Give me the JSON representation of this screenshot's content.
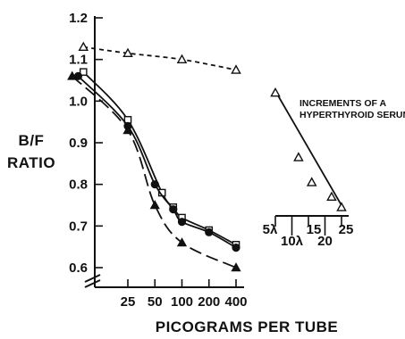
{
  "chart_data": {
    "type": "line",
    "xlabel": "PICOGRAMS PER TUBE",
    "ylabel_line1": "B/F",
    "ylabel_line2": "RATIO",
    "ylim": [
      0.6,
      1.2
    ],
    "y_ticks": [
      "0.6",
      "0.7",
      "0.8",
      "0.9",
      "1.0",
      "1.1",
      "1.2"
    ],
    "x_ticks": [
      "25",
      "50",
      "100",
      "200",
      "400"
    ],
    "x_scale": "log",
    "series": [
      {
        "marker": "open-triangle",
        "line_style": "dashed",
        "x": [
          8,
          25,
          100,
          400
        ],
        "y": [
          1.13,
          1.115,
          1.1,
          1.075
        ]
      },
      {
        "marker": "open-square",
        "line_style": "solid",
        "x": [
          8,
          25,
          60,
          80,
          100,
          200,
          400
        ],
        "y": [
          1.07,
          0.955,
          0.78,
          0.745,
          0.72,
          0.69,
          0.655
        ]
      },
      {
        "marker": "filled-circle",
        "line_style": "solid",
        "x": [
          7,
          25,
          50,
          80,
          100,
          200,
          400
        ],
        "y": [
          1.06,
          0.94,
          0.8,
          0.74,
          0.71,
          0.685,
          0.648
        ]
      },
      {
        "marker": "filled-triangle",
        "line_style": "long-dashed",
        "x": [
          6,
          25,
          50,
          100,
          400
        ],
        "y": [
          1.06,
          0.93,
          0.75,
          0.66,
          0.6
        ]
      }
    ],
    "inset": {
      "annotation_line1": "INCREMENTS OF A",
      "annotation_line2": "HYPERTHYROID SERUM",
      "x_ticks": [
        "5λ",
        "10λ",
        "15",
        "20",
        "25"
      ],
      "x": [
        5,
        12,
        16,
        22,
        25
      ],
      "y": [
        1.02,
        0.865,
        0.805,
        0.77,
        0.745
      ]
    }
  }
}
